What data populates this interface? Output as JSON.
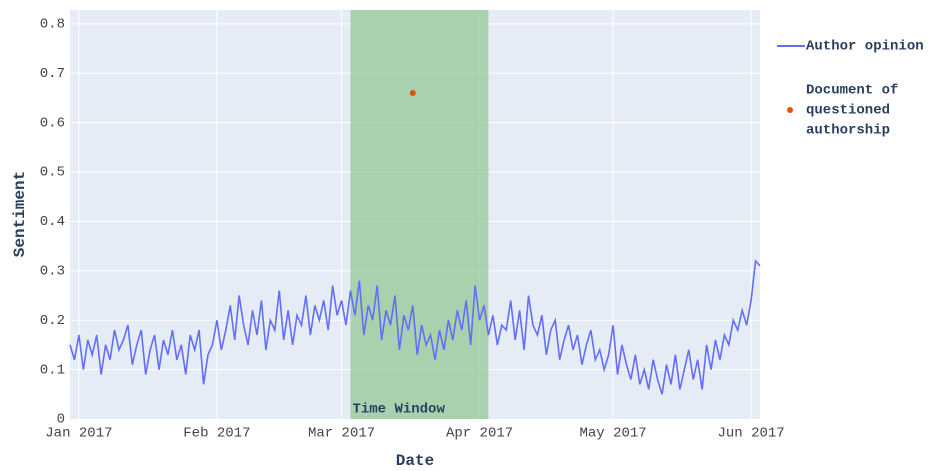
{
  "chart_data": {
    "type": "line",
    "xlabel": "Date",
    "ylabel": "Sentiment",
    "xlim": [
      "2016-12-30",
      "2017-06-03"
    ],
    "xticks": [
      {
        "value": "2017-01-01",
        "label": "Jan 2017"
      },
      {
        "value": "2017-02-01",
        "label": "Feb 2017"
      },
      {
        "value": "2017-03-01",
        "label": "Mar 2017"
      },
      {
        "value": "2017-04-01",
        "label": "Apr 2017"
      },
      {
        "value": "2017-05-01",
        "label": "May 2017"
      },
      {
        "value": "2017-06-01",
        "label": "Jun 2017"
      }
    ],
    "ylim": [
      0,
      0.828
    ],
    "yticks": [
      0,
      0.1,
      0.2,
      0.3,
      0.4,
      0.5,
      0.6,
      0.7,
      0.8
    ],
    "grid": true,
    "shaded_region": {
      "x": [
        "2017-03-03",
        "2017-04-03"
      ],
      "label": "Time Window",
      "color": "#8fc78f"
    },
    "x": [
      "2016-12-30",
      "2016-12-31",
      "2017-01-01",
      "2017-01-02",
      "2017-01-03",
      "2017-01-04",
      "2017-01-05",
      "2017-01-06",
      "2017-01-07",
      "2017-01-08",
      "2017-01-09",
      "2017-01-10",
      "2017-01-11",
      "2017-01-12",
      "2017-01-13",
      "2017-01-14",
      "2017-01-15",
      "2017-01-16",
      "2017-01-17",
      "2017-01-18",
      "2017-01-19",
      "2017-01-20",
      "2017-01-21",
      "2017-01-22",
      "2017-01-23",
      "2017-01-24",
      "2017-01-25",
      "2017-01-26",
      "2017-01-27",
      "2017-01-28",
      "2017-01-29",
      "2017-01-30",
      "2017-01-31",
      "2017-02-01",
      "2017-02-02",
      "2017-02-03",
      "2017-02-04",
      "2017-02-05",
      "2017-02-06",
      "2017-02-07",
      "2017-02-08",
      "2017-02-09",
      "2017-02-10",
      "2017-02-11",
      "2017-02-12",
      "2017-02-13",
      "2017-02-14",
      "2017-02-15",
      "2017-02-16",
      "2017-02-17",
      "2017-02-18",
      "2017-02-19",
      "2017-02-20",
      "2017-02-21",
      "2017-02-22",
      "2017-02-23",
      "2017-02-24",
      "2017-02-25",
      "2017-02-26",
      "2017-02-27",
      "2017-02-28",
      "2017-03-01",
      "2017-03-02",
      "2017-03-03",
      "2017-03-04",
      "2017-03-05",
      "2017-03-06",
      "2017-03-07",
      "2017-03-08",
      "2017-03-09",
      "2017-03-10",
      "2017-03-11",
      "2017-03-12",
      "2017-03-13",
      "2017-03-14",
      "2017-03-15",
      "2017-03-16",
      "2017-03-17",
      "2017-03-18",
      "2017-03-19",
      "2017-03-20",
      "2017-03-21",
      "2017-03-22",
      "2017-03-23",
      "2017-03-24",
      "2017-03-25",
      "2017-03-26",
      "2017-03-27",
      "2017-03-28",
      "2017-03-29",
      "2017-03-30",
      "2017-03-31",
      "2017-04-01",
      "2017-04-02",
      "2017-04-03",
      "2017-04-04",
      "2017-04-05",
      "2017-04-06",
      "2017-04-07",
      "2017-04-08",
      "2017-04-09",
      "2017-04-10",
      "2017-04-11",
      "2017-04-12",
      "2017-04-13",
      "2017-04-14",
      "2017-04-15",
      "2017-04-16",
      "2017-04-17",
      "2017-04-18",
      "2017-04-19",
      "2017-04-20",
      "2017-04-21",
      "2017-04-22",
      "2017-04-23",
      "2017-04-24",
      "2017-04-25",
      "2017-04-26",
      "2017-04-27",
      "2017-04-28",
      "2017-04-29",
      "2017-04-30",
      "2017-05-01",
      "2017-05-02",
      "2017-05-03",
      "2017-05-04",
      "2017-05-05",
      "2017-05-06",
      "2017-05-07",
      "2017-05-08",
      "2017-05-09",
      "2017-05-10",
      "2017-05-11",
      "2017-05-12",
      "2017-05-13",
      "2017-05-14",
      "2017-05-15",
      "2017-05-16",
      "2017-05-17",
      "2017-05-18",
      "2017-05-19",
      "2017-05-20",
      "2017-05-21",
      "2017-05-22",
      "2017-05-23",
      "2017-05-24",
      "2017-05-25",
      "2017-05-26",
      "2017-05-27",
      "2017-05-28",
      "2017-05-29",
      "2017-05-30",
      "2017-05-31",
      "2017-06-01",
      "2017-06-02",
      "2017-06-03"
    ],
    "series": [
      {
        "name": "Author opinion",
        "color": "#636efa",
        "values": [
          0.15,
          0.12,
          0.17,
          0.1,
          0.16,
          0.13,
          0.17,
          0.09,
          0.15,
          0.12,
          0.18,
          0.14,
          0.16,
          0.19,
          0.11,
          0.15,
          0.18,
          0.09,
          0.14,
          0.17,
          0.1,
          0.16,
          0.13,
          0.18,
          0.12,
          0.15,
          0.09,
          0.17,
          0.14,
          0.18,
          0.07,
          0.13,
          0.15,
          0.2,
          0.14,
          0.18,
          0.23,
          0.16,
          0.25,
          0.19,
          0.15,
          0.22,
          0.17,
          0.24,
          0.14,
          0.2,
          0.18,
          0.26,
          0.16,
          0.22,
          0.15,
          0.21,
          0.19,
          0.25,
          0.17,
          0.23,
          0.2,
          0.24,
          0.18,
          0.27,
          0.21,
          0.24,
          0.19,
          0.26,
          0.21,
          0.28,
          0.17,
          0.23,
          0.2,
          0.27,
          0.16,
          0.22,
          0.19,
          0.25,
          0.14,
          0.21,
          0.18,
          0.23,
          0.13,
          0.19,
          0.15,
          0.17,
          0.12,
          0.18,
          0.14,
          0.2,
          0.16,
          0.22,
          0.18,
          0.24,
          0.15,
          0.27,
          0.2,
          0.23,
          0.17,
          0.21,
          0.15,
          0.19,
          0.18,
          0.24,
          0.16,
          0.22,
          0.14,
          0.25,
          0.19,
          0.17,
          0.21,
          0.13,
          0.18,
          0.2,
          0.12,
          0.16,
          0.19,
          0.14,
          0.17,
          0.11,
          0.15,
          0.18,
          0.12,
          0.14,
          0.1,
          0.13,
          0.19,
          0.09,
          0.15,
          0.11,
          0.08,
          0.13,
          0.07,
          0.1,
          0.06,
          0.12,
          0.08,
          0.05,
          0.11,
          0.07,
          0.13,
          0.06,
          0.1,
          0.14,
          0.08,
          0.12,
          0.06,
          0.15,
          0.1,
          0.16,
          0.12,
          0.17,
          0.15,
          0.2,
          0.18,
          0.22,
          0.19,
          0.24,
          0.32,
          0.31
        ]
      }
    ],
    "points": {
      "name": "Document of questioned authorship",
      "legend_lines": [
        "Document of",
        "questioned",
        "authorship"
      ],
      "color": "#e0530b",
      "x": [
        "2017-03-17"
      ],
      "values": [
        0.66
      ]
    }
  }
}
